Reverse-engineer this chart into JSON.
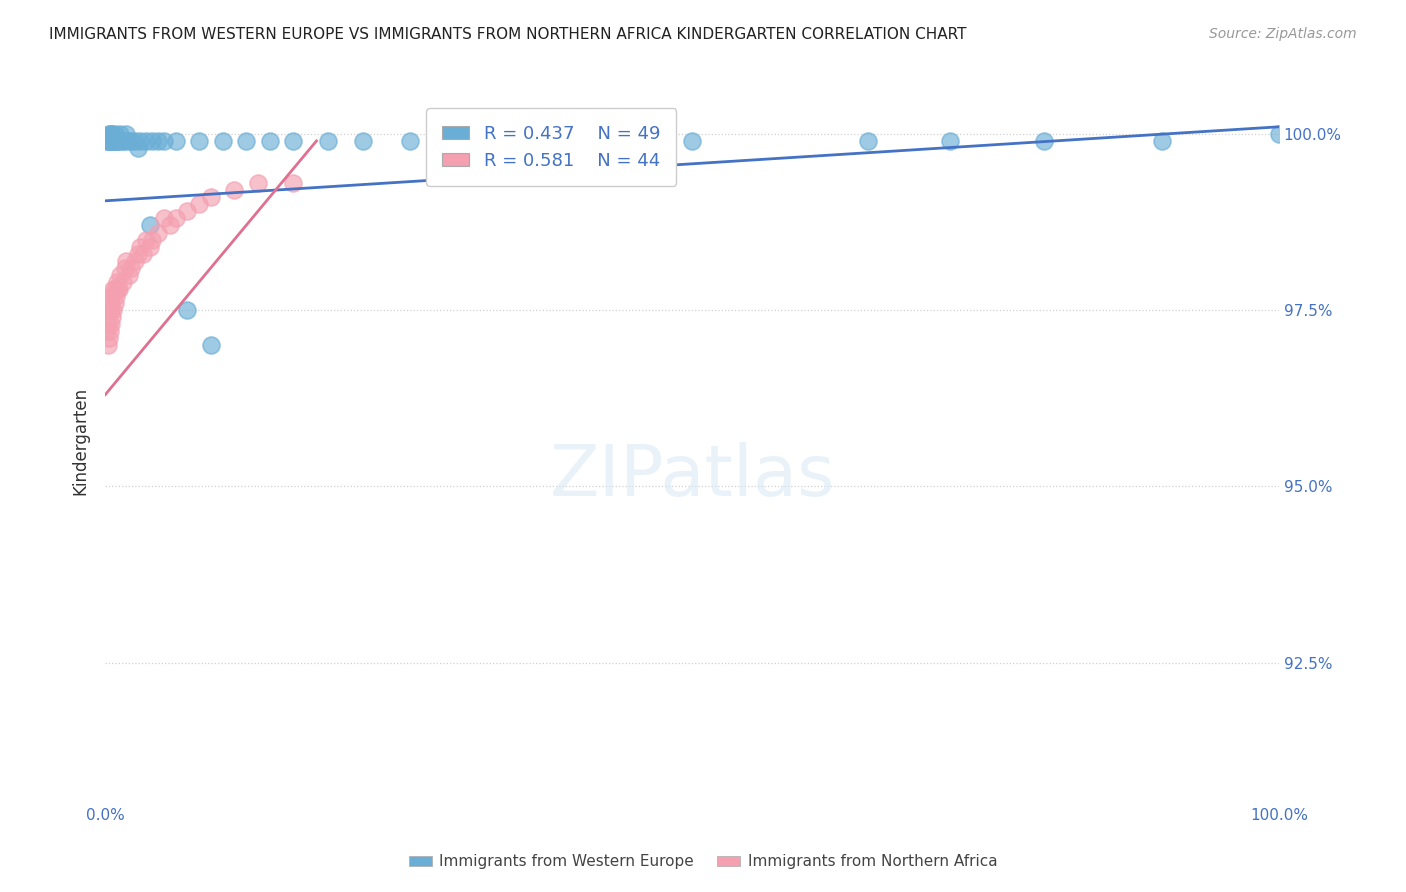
{
  "title": "IMMIGRANTS FROM WESTERN EUROPE VS IMMIGRANTS FROM NORTHERN AFRICA KINDERGARTEN CORRELATION CHART",
  "source": "Source: ZipAtlas.com",
  "ylabel": "Kindergarten",
  "ytick_labels": [
    "92.5%",
    "95.0%",
    "97.5%",
    "100.0%"
  ],
  "ytick_values": [
    0.925,
    0.95,
    0.975,
    1.0
  ],
  "xlim": [
    0.0,
    1.0
  ],
  "ylim": [
    0.905,
    1.008
  ],
  "blue_R": 0.437,
  "blue_N": 49,
  "pink_R": 0.581,
  "pink_N": 44,
  "blue_color": "#6aaed6",
  "pink_color": "#f4a0b0",
  "blue_line_color": "#4472c4",
  "pink_line_color": "#e07090",
  "legend_blue_label": "Immigrants from Western Europe",
  "legend_pink_label": "Immigrants from Northern Africa",
  "blue_x": [
    0.001,
    0.002,
    0.003,
    0.003,
    0.004,
    0.004,
    0.005,
    0.005,
    0.006,
    0.006,
    0.007,
    0.007,
    0.008,
    0.009,
    0.01,
    0.011,
    0.012,
    0.013,
    0.015,
    0.016,
    0.018,
    0.02,
    0.022,
    0.025,
    0.028,
    0.03,
    0.035,
    0.038,
    0.04,
    0.045,
    0.05,
    0.06,
    0.07,
    0.08,
    0.09,
    0.1,
    0.12,
    0.14,
    0.16,
    0.19,
    0.22,
    0.26,
    0.32,
    0.5,
    0.65,
    0.72,
    0.8,
    0.9,
    1.0
  ],
  "blue_y": [
    0.999,
    0.999,
    1.0,
    0.999,
    0.999,
    1.0,
    0.999,
    1.0,
    0.999,
    1.0,
    0.999,
    0.999,
    1.0,
    0.999,
    0.999,
    0.999,
    0.999,
    1.0,
    0.999,
    0.999,
    1.0,
    0.999,
    0.999,
    0.999,
    0.998,
    0.999,
    0.999,
    0.987,
    0.999,
    0.999,
    0.999,
    0.999,
    0.975,
    0.999,
    0.97,
    0.999,
    0.999,
    0.999,
    0.999,
    0.999,
    0.999,
    0.999,
    0.999,
    0.999,
    0.999,
    0.999,
    0.999,
    0.999,
    1.0
  ],
  "pink_x": [
    0.001,
    0.001,
    0.002,
    0.002,
    0.003,
    0.003,
    0.004,
    0.004,
    0.005,
    0.005,
    0.005,
    0.006,
    0.006,
    0.007,
    0.007,
    0.008,
    0.008,
    0.009,
    0.01,
    0.011,
    0.012,
    0.013,
    0.015,
    0.017,
    0.018,
    0.02,
    0.022,
    0.025,
    0.028,
    0.03,
    0.032,
    0.035,
    0.038,
    0.04,
    0.045,
    0.05,
    0.055,
    0.06,
    0.07,
    0.08,
    0.09,
    0.11,
    0.13,
    0.16
  ],
  "pink_y": [
    0.972,
    0.975,
    0.97,
    0.973,
    0.971,
    0.975,
    0.972,
    0.976,
    0.973,
    0.975,
    0.977,
    0.974,
    0.977,
    0.975,
    0.978,
    0.976,
    0.978,
    0.977,
    0.979,
    0.978,
    0.978,
    0.98,
    0.979,
    0.981,
    0.982,
    0.98,
    0.981,
    0.982,
    0.983,
    0.984,
    0.983,
    0.985,
    0.984,
    0.985,
    0.986,
    0.988,
    0.987,
    0.988,
    0.989,
    0.99,
    0.991,
    0.992,
    0.993,
    0.993
  ]
}
